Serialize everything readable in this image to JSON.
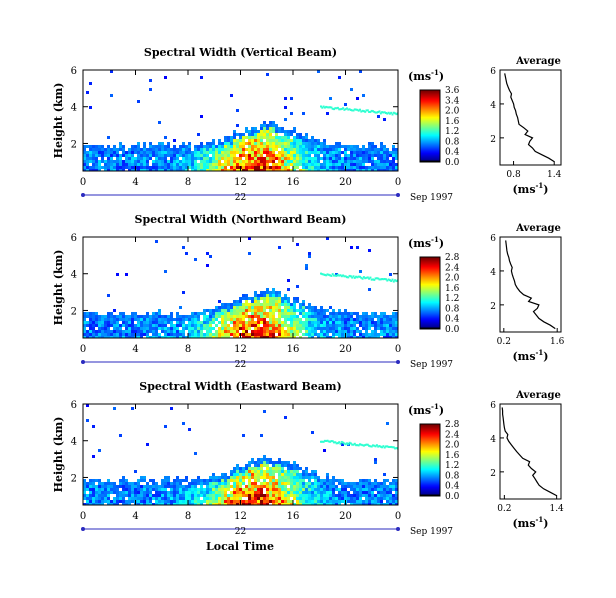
{
  "chart_data": [
    {
      "type": "heatmap",
      "title": "Spectral Width (Vertical Beam)",
      "ylabel": "Height (km)",
      "x_ticks": [
        "0",
        "4",
        "8",
        "12",
        "16",
        "20",
        "0"
      ],
      "y_ticks": [
        "2",
        "4",
        "6"
      ],
      "xlim": [
        0,
        24
      ],
      "ylim": [
        0.5,
        6.0
      ],
      "date_day": "22",
      "date_month": "Sep 1997",
      "colorbar": {
        "unit": "(ms",
        "unit_exp": "-1",
        "unit_close": ")",
        "ticks": [
          "3.6",
          "3.4",
          "2.0",
          "1.6",
          "1.2",
          "0.8",
          "0.4",
          "0.0"
        ],
        "max": 3.6
      },
      "profile": {
        "title": "Average",
        "xlabel": "(ms",
        "xlabel_exp": "-1",
        "xlabel_close": ")",
        "x_ticks": [
          "0.8",
          "1.4"
        ],
        "y_ticks": [
          "2",
          "4",
          "6"
        ],
        "xlim": [
          0.6,
          1.5
        ],
        "height": [
          0.6,
          0.8,
          1.0,
          1.2,
          1.4,
          1.6,
          1.8,
          2.0,
          2.2,
          2.4,
          2.6,
          2.8,
          3.0,
          3.2,
          3.4,
          3.6,
          3.8,
          4.0,
          4.2,
          4.4,
          4.6,
          4.8,
          5.0,
          5.2,
          5.4,
          5.6,
          5.8
        ],
        "values": [
          1.4,
          1.32,
          1.22,
          1.12,
          1.08,
          1.02,
          1.04,
          1.08,
          0.97,
          1.01,
          0.95,
          0.88,
          0.87,
          0.86,
          0.84,
          0.83,
          0.81,
          0.8,
          0.78,
          0.76,
          0.77,
          0.74,
          0.72,
          0.7,
          0.69,
          0.68,
          0.67
        ]
      }
    },
    {
      "type": "heatmap",
      "title": "Spectral Width (Northward Beam)",
      "ylabel": "Height (km)",
      "x_ticks": [
        "0",
        "4",
        "8",
        "12",
        "16",
        "20",
        "0"
      ],
      "y_ticks": [
        "2",
        "4",
        "6"
      ],
      "xlim": [
        0,
        24
      ],
      "ylim": [
        0.5,
        6.0
      ],
      "date_day": "22",
      "date_month": "Sep 1997",
      "colorbar": {
        "unit": "(ms",
        "unit_exp": "-1",
        "unit_close": ")",
        "ticks": [
          "2.8",
          "2.4",
          "2.0",
          "1.6",
          "1.2",
          "0.8",
          "0.4",
          "0.0"
        ],
        "max": 2.8
      },
      "profile": {
        "title": "Average",
        "xlabel": "(ms",
        "xlabel_exp": "-1",
        "xlabel_close": ")",
        "x_ticks": [
          "0.2",
          "1.6"
        ],
        "y_ticks": [
          "2",
          "4",
          "6"
        ],
        "xlim": [
          0.1,
          1.7
        ],
        "height": [
          0.6,
          0.8,
          1.0,
          1.2,
          1.4,
          1.6,
          1.8,
          2.0,
          2.2,
          2.4,
          2.6,
          2.8,
          3.0,
          3.2,
          3.4,
          3.6,
          3.8,
          4.0,
          4.2,
          4.4,
          4.6,
          4.8,
          5.0,
          5.2,
          5.4,
          5.6,
          5.8
        ],
        "values": [
          1.55,
          1.42,
          1.25,
          1.12,
          1.05,
          0.98,
          1.08,
          1.12,
          0.85,
          0.92,
          0.72,
          0.62,
          0.55,
          0.5,
          0.48,
          0.45,
          0.42,
          0.4,
          0.42,
          0.38,
          0.35,
          0.33,
          0.3,
          0.28,
          0.27,
          0.26,
          0.25
        ]
      }
    },
    {
      "type": "heatmap",
      "title": "Spectral Width (Eastward Beam)",
      "ylabel": "Height (km)",
      "x_ticks": [
        "0",
        "4",
        "8",
        "12",
        "16",
        "20",
        "0"
      ],
      "y_ticks": [
        "2",
        "4",
        "6"
      ],
      "xlim": [
        0,
        24
      ],
      "ylim": [
        0.5,
        6.0
      ],
      "date_day": "22",
      "date_month": "Sep 1997",
      "xlabel": "Local Time",
      "colorbar": {
        "unit": "(ms",
        "unit_exp": "-1",
        "unit_close": ")",
        "ticks": [
          "2.8",
          "2.4",
          "2.0",
          "1.6",
          "1.2",
          "0.8",
          "0.4",
          "0.0"
        ],
        "max": 2.8
      },
      "profile": {
        "title": "Average",
        "xlabel": "(ms",
        "xlabel_exp": "-1",
        "xlabel_close": ")",
        "x_ticks": [
          "0.2",
          "1.4"
        ],
        "y_ticks": [
          "2",
          "4",
          "6"
        ],
        "xlim": [
          0.1,
          1.5
        ],
        "height": [
          0.6,
          0.8,
          1.0,
          1.2,
          1.4,
          1.6,
          1.8,
          2.0,
          2.2,
          2.4,
          2.6,
          2.8,
          3.0,
          3.2,
          3.4,
          3.6,
          3.8,
          4.0,
          4.2,
          4.4,
          4.6,
          4.8,
          5.0,
          5.2,
          5.4,
          5.6,
          5.8
        ],
        "values": [
          1.4,
          1.25,
          1.1,
          1.0,
          0.95,
          0.9,
          0.85,
          0.92,
          0.82,
          0.75,
          0.78,
          0.62,
          0.55,
          0.48,
          0.42,
          0.36,
          0.3,
          0.26,
          0.28,
          0.22,
          0.2,
          0.19,
          0.18,
          0.17,
          0.16,
          0.16,
          0.15
        ]
      }
    }
  ]
}
